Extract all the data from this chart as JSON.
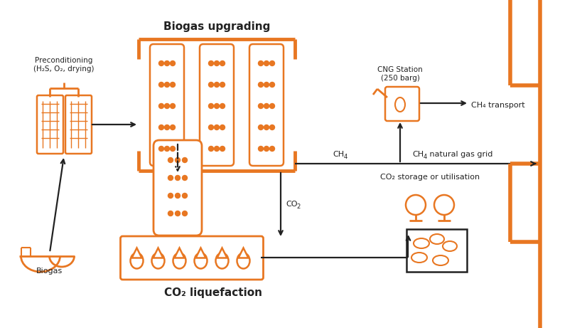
{
  "bg_color": "#ffffff",
  "orange": "#E87722",
  "black": "#222222",
  "title": "Biogas upgrading",
  "co2_title": "CO₂ liquefaction",
  "biogas_label": "Biogas",
  "precond_label": "Preconditioning\n(H₂S, O₂, drying)",
  "cng_label": "CNG Station\n(250 barg)",
  "ch4_transport": "CH₄ transport",
  "ch4_label": "CH₄",
  "ch4_grid": "CH₄ natural gas grid",
  "co2_label": "CO₂",
  "co2_storage": "CO₂ storage or utilisation"
}
